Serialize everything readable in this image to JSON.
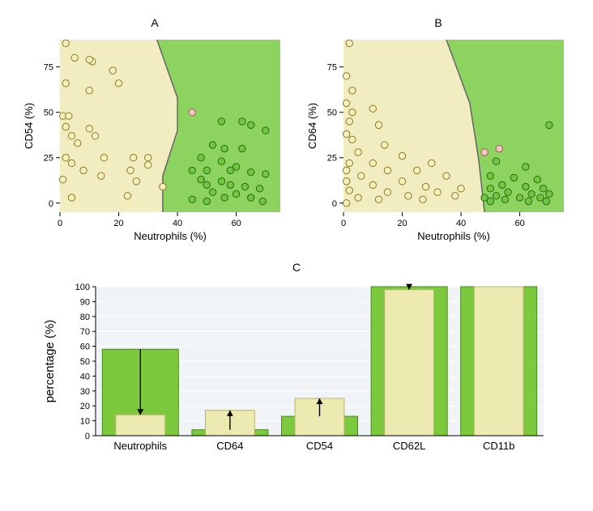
{
  "colors": {
    "region_left": "#f2edc0",
    "region_right": "#8dd35f",
    "boundary": "#666666",
    "point_yellow_fill": "#f4f0bb",
    "point_yellow_stroke": "#8a7a2a",
    "point_green_fill": "#6fc93e",
    "point_green_stroke": "#2e6818",
    "point_pink_fill": "#f4c6c6",
    "point_pink_stroke": "#a85a5a",
    "axis": "#000000",
    "bar_green_fill": "#7dc93e",
    "bar_green_stroke": "#4a8a1e",
    "bar_yellow_fill": "#eceab0",
    "bar_yellow_stroke": "#b8b370",
    "grid": "#e6edf2",
    "panel_bg": "#f0f4f7"
  },
  "scatterA": {
    "title": "A",
    "xlabel": "Neutrophils (%)",
    "ylabel": "CD54 (%)",
    "xlim": [
      0,
      75
    ],
    "ylim": [
      -5,
      90
    ],
    "xticks": [
      0,
      20,
      40,
      60
    ],
    "yticks": [
      0,
      25,
      50,
      75
    ],
    "boundary": [
      [
        35,
        -5
      ],
      [
        35,
        15
      ],
      [
        40,
        40
      ],
      [
        40,
        58
      ],
      [
        33,
        90
      ]
    ],
    "points_yellow": [
      [
        2,
        88
      ],
      [
        5,
        80
      ],
      [
        11,
        78
      ],
      [
        10,
        79
      ],
      [
        18,
        73
      ],
      [
        2,
        66
      ],
      [
        20,
        66
      ],
      [
        10,
        62
      ],
      [
        1,
        48
      ],
      [
        3,
        48
      ],
      [
        2,
        42
      ],
      [
        10,
        41
      ],
      [
        4,
        37
      ],
      [
        12,
        37
      ],
      [
        6,
        33
      ],
      [
        2,
        25
      ],
      [
        15,
        25
      ],
      [
        25,
        25
      ],
      [
        30,
        25
      ],
      [
        4,
        22
      ],
      [
        30,
        21
      ],
      [
        8,
        18
      ],
      [
        24,
        18
      ],
      [
        14,
        15
      ],
      [
        1,
        13
      ],
      [
        26,
        12
      ],
      [
        35,
        9
      ],
      [
        23,
        4
      ],
      [
        4,
        3
      ]
    ],
    "points_green": [
      [
        55,
        45
      ],
      [
        62,
        45
      ],
      [
        65,
        43
      ],
      [
        70,
        40
      ],
      [
        52,
        32
      ],
      [
        56,
        30
      ],
      [
        62,
        30
      ],
      [
        48,
        25
      ],
      [
        55,
        23
      ],
      [
        60,
        20
      ],
      [
        45,
        18
      ],
      [
        50,
        18
      ],
      [
        58,
        18
      ],
      [
        65,
        17
      ],
      [
        70,
        16
      ],
      [
        48,
        13
      ],
      [
        55,
        12
      ],
      [
        50,
        10
      ],
      [
        58,
        10
      ],
      [
        63,
        9
      ],
      [
        68,
        8
      ],
      [
        52,
        6
      ],
      [
        60,
        5
      ],
      [
        56,
        3
      ],
      [
        65,
        3
      ],
      [
        45,
        2
      ],
      [
        50,
        1
      ],
      [
        69,
        1
      ]
    ],
    "points_pink": [
      [
        45,
        50
      ]
    ]
  },
  "scatterB": {
    "title": "B",
    "xlabel": "Neutrophils (%)",
    "ylabel": "CD64 (%)",
    "xlim": [
      0,
      75
    ],
    "ylim": [
      -5,
      90
    ],
    "xticks": [
      0,
      20,
      40,
      60
    ],
    "yticks": [
      0,
      25,
      50,
      75
    ],
    "boundary": [
      [
        48,
        -5
      ],
      [
        46,
        24
      ],
      [
        43,
        55
      ],
      [
        35,
        90
      ]
    ],
    "points_yellow": [
      [
        2,
        88
      ],
      [
        1,
        70
      ],
      [
        3,
        62
      ],
      [
        1,
        55
      ],
      [
        10,
        52
      ],
      [
        3,
        50
      ],
      [
        2,
        45
      ],
      [
        12,
        43
      ],
      [
        1,
        38
      ],
      [
        3,
        35
      ],
      [
        14,
        32
      ],
      [
        5,
        28
      ],
      [
        20,
        26
      ],
      [
        2,
        22
      ],
      [
        10,
        22
      ],
      [
        30,
        22
      ],
      [
        1,
        18
      ],
      [
        15,
        18
      ],
      [
        25,
        18
      ],
      [
        6,
        15
      ],
      [
        35,
        15
      ],
      [
        1,
        12
      ],
      [
        20,
        12
      ],
      [
        10,
        10
      ],
      [
        28,
        9
      ],
      [
        40,
        8
      ],
      [
        2,
        7
      ],
      [
        15,
        6
      ],
      [
        32,
        6
      ],
      [
        22,
        4
      ],
      [
        38,
        4
      ],
      [
        5,
        3
      ],
      [
        12,
        2
      ],
      [
        27,
        2
      ],
      [
        1,
        0
      ]
    ],
    "points_green": [
      [
        70,
        43
      ],
      [
        52,
        23
      ],
      [
        62,
        20
      ],
      [
        50,
        15
      ],
      [
        58,
        14
      ],
      [
        66,
        13
      ],
      [
        54,
        10
      ],
      [
        62,
        9
      ],
      [
        50,
        8
      ],
      [
        68,
        8
      ],
      [
        56,
        6
      ],
      [
        64,
        5
      ],
      [
        70,
        5
      ],
      [
        52,
        4
      ],
      [
        60,
        3
      ],
      [
        48,
        3
      ],
      [
        67,
        3
      ],
      [
        55,
        2
      ],
      [
        63,
        1
      ],
      [
        50,
        1
      ],
      [
        69,
        1
      ]
    ],
    "points_pink": [
      [
        53,
        30
      ],
      [
        48,
        28
      ]
    ]
  },
  "barC": {
    "title": "C",
    "ylabel": "percentage (%)",
    "ylim": [
      0,
      100
    ],
    "yticks": [
      0,
      10,
      20,
      30,
      40,
      50,
      60,
      70,
      80,
      90,
      100
    ],
    "categories": [
      "Neutrophils",
      "CD64",
      "CD54",
      "CD62L",
      "CD11b"
    ],
    "green_values": [
      58,
      4,
      13,
      100,
      100
    ],
    "yellow_values": [
      14,
      17,
      25,
      98,
      100
    ],
    "arrows": [
      "down",
      "up",
      "up",
      "down",
      null
    ]
  },
  "fontsize": {
    "title": 14,
    "axis_label": 13,
    "tick": 11
  },
  "marker_radius": 4.2,
  "bar_widths": {
    "green": 0.85,
    "yellow": 0.55
  }
}
